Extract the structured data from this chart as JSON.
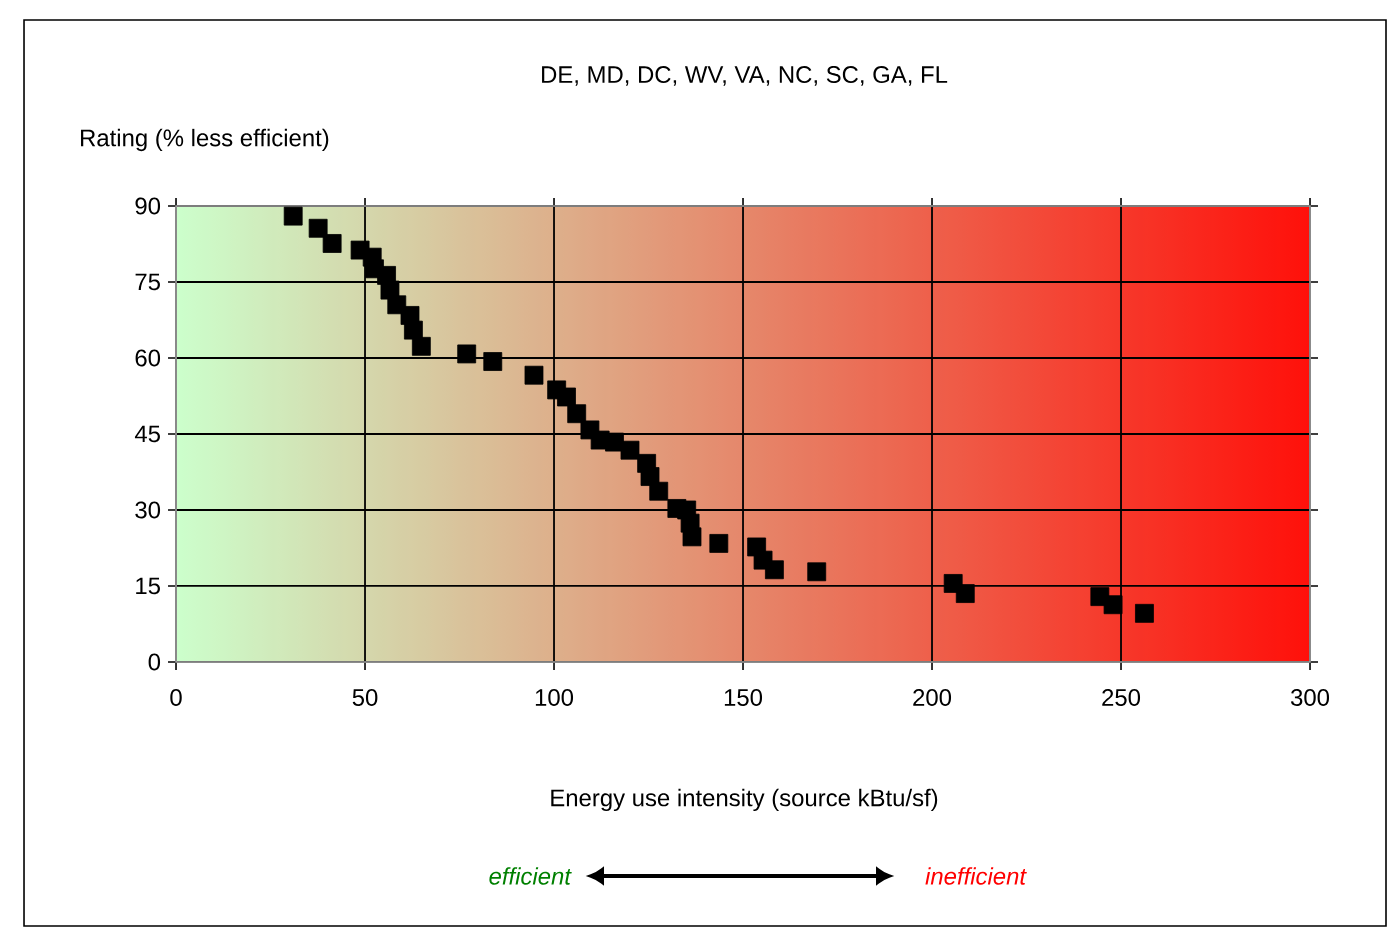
{
  "chart_data": {
    "type": "scatter",
    "title": "DE, MD, DC, WV, VA, NC, SC, GA, FL",
    "xlabel": "Energy use intensity (source kBtu/sf)",
    "ylabel": "Rating (% less efficient)",
    "x": [
      31,
      37.6,
      41.3,
      48.7,
      51.9,
      52.5,
      55.7,
      56.6,
      58.4,
      61.9,
      62.8,
      64.9,
      76.9,
      83.8,
      94.7,
      100.7,
      103.3,
      106,
      109.5,
      112.2,
      116,
      120.1,
      124.5,
      125.4,
      127.7,
      132.5,
      135.1,
      136,
      136.5,
      143.6,
      153.6,
      155.3,
      158.3,
      169.5,
      205.6,
      208.8,
      244.4,
      247.9,
      256.2
    ],
    "series": [
      {
        "color": "#000000",
        "values": [
          88,
          85.6,
          82.6,
          81.3,
          79.9,
          77.6,
          76.3,
          73.4,
          70.5,
          68.4,
          65.5,
          62.3,
          60.8,
          59.3,
          56.6,
          53.7,
          52.3,
          49,
          45.8,
          43.8,
          43.4,
          41.8,
          39.2,
          36.6,
          33.7,
          30.3,
          30,
          27.4,
          24.7,
          23.4,
          22.7,
          20.1,
          18.2,
          17.8,
          15.5,
          13.5,
          12.9,
          11.3,
          9.6
        ]
      }
    ],
    "xlim": [
      0,
      300
    ],
    "ylim": [
      0,
      90
    ],
    "xticks": [
      0,
      50,
      100,
      150,
      200,
      250,
      300
    ],
    "yticks": [
      0,
      15,
      30,
      45,
      60,
      75,
      90
    ],
    "grid": true,
    "marker": "square",
    "annotations": [
      "efficient",
      "inefficient"
    ]
  }
}
